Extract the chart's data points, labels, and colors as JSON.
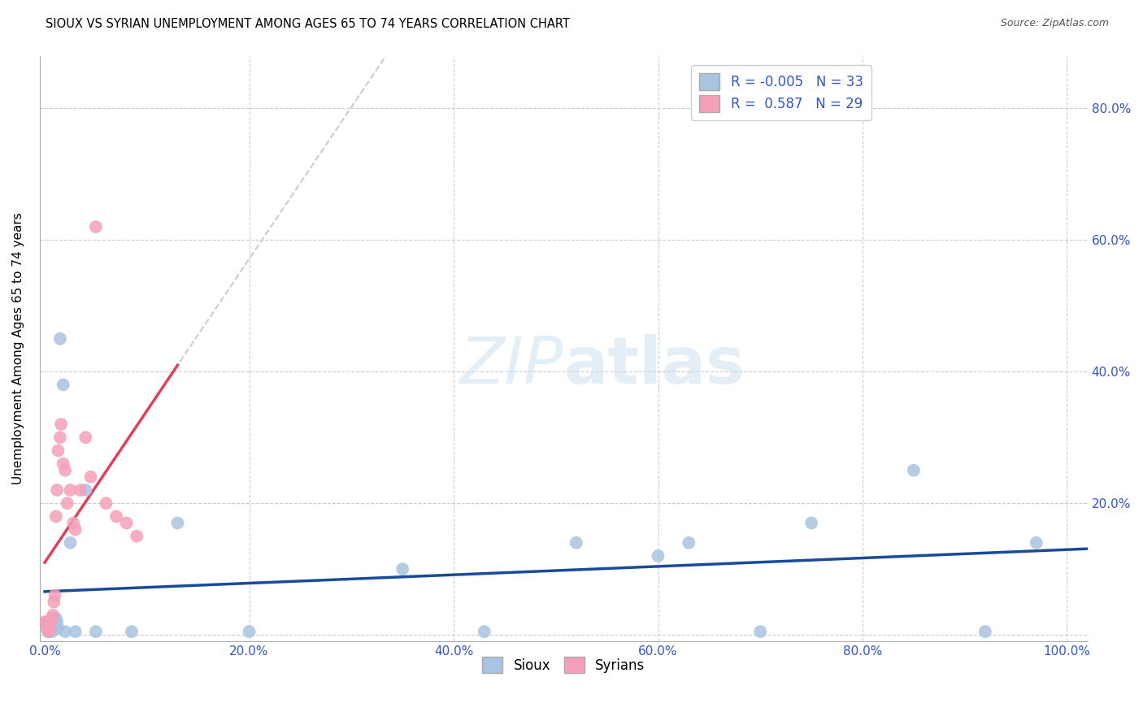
{
  "title": "SIOUX VS SYRIAN UNEMPLOYMENT AMONG AGES 65 TO 74 YEARS CORRELATION CHART",
  "source": "Source: ZipAtlas.com",
  "ylabel": "Unemployment Among Ages 65 to 74 years",
  "xlim": [
    -0.005,
    1.02
  ],
  "ylim": [
    -0.01,
    0.88
  ],
  "xticks": [
    0.0,
    0.2,
    0.4,
    0.6,
    0.8,
    1.0
  ],
  "yticks": [
    0.0,
    0.2,
    0.4,
    0.6,
    0.8
  ],
  "xtick_labels": [
    "0.0%",
    "20.0%",
    "40.0%",
    "60.0%",
    "80.0%",
    "100.0%"
  ],
  "ytick_labels_right": [
    "",
    "20.0%",
    "40.0%",
    "60.0%",
    "80.0%"
  ],
  "legend_R_sioux": "-0.005",
  "legend_N_sioux": "33",
  "legend_R_syrians": "0.587",
  "legend_N_syrians": "29",
  "sioux_color": "#a8c4e0",
  "syrians_color": "#f4a0b8",
  "sioux_line_color": "#1a4a9a",
  "syrians_line_color": "#e0405a",
  "trend_dash_color": "#cccccc",
  "sioux_x": [
    0.001,
    0.002,
    0.003,
    0.004,
    0.005,
    0.006,
    0.007,
    0.008,
    0.009,
    0.01,
    0.011,
    0.012,
    0.013,
    0.015,
    0.018,
    0.02,
    0.025,
    0.03,
    0.04,
    0.05,
    0.085,
    0.13,
    0.2,
    0.35,
    0.43,
    0.52,
    0.6,
    0.63,
    0.7,
    0.75,
    0.85,
    0.92,
    0.97
  ],
  "sioux_y": [
    0.02,
    0.01,
    0.005,
    0.015,
    0.02,
    0.01,
    0.005,
    0.01,
    0.015,
    0.02,
    0.025,
    0.02,
    0.01,
    0.45,
    0.38,
    0.005,
    0.14,
    0.005,
    0.22,
    0.005,
    0.005,
    0.17,
    0.005,
    0.1,
    0.005,
    0.14,
    0.12,
    0.14,
    0.005,
    0.17,
    0.25,
    0.005,
    0.14
  ],
  "syrians_x": [
    0.001,
    0.002,
    0.003,
    0.004,
    0.005,
    0.006,
    0.007,
    0.008,
    0.009,
    0.01,
    0.011,
    0.012,
    0.013,
    0.015,
    0.016,
    0.018,
    0.02,
    0.022,
    0.025,
    0.028,
    0.03,
    0.035,
    0.04,
    0.045,
    0.05,
    0.06,
    0.07,
    0.08,
    0.09
  ],
  "syrians_y": [
    0.02,
    0.015,
    0.01,
    0.005,
    0.01,
    0.02,
    0.025,
    0.03,
    0.05,
    0.06,
    0.18,
    0.22,
    0.28,
    0.3,
    0.32,
    0.26,
    0.25,
    0.2,
    0.22,
    0.17,
    0.16,
    0.22,
    0.3,
    0.24,
    0.62,
    0.2,
    0.18,
    0.17,
    0.15
  ]
}
